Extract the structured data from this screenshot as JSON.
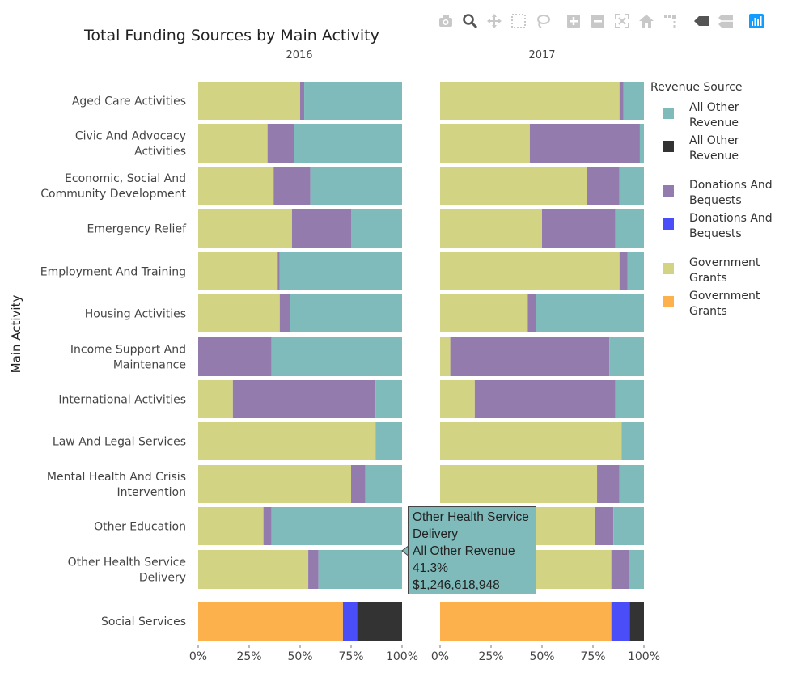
{
  "toolbar": {
    "buttons": [
      {
        "name": "camera-icon",
        "label": "Download plot as a png"
      },
      {
        "name": "zoom-icon",
        "label": "Zoom"
      },
      {
        "name": "pan-icon",
        "label": "Pan"
      },
      {
        "name": "box-select-icon",
        "label": "Box Select"
      },
      {
        "name": "lasso-select-icon",
        "label": "Lasso Select"
      },
      {
        "name": "zoom-in-icon",
        "label": "Zoom in"
      },
      {
        "name": "zoom-out-icon",
        "label": "Zoom out"
      },
      {
        "name": "autoscale-icon",
        "label": "Autoscale"
      },
      {
        "name": "reset-axes-icon",
        "label": "Reset axes"
      },
      {
        "name": "spike-lines-icon",
        "label": "Toggle Spike Lines"
      },
      {
        "name": "hover-closest-icon",
        "label": "Show closest data on hover"
      },
      {
        "name": "hover-compare-icon",
        "label": "Compare data on hover"
      },
      {
        "name": "plotly-logo-icon",
        "label": "Produced with Plotly"
      }
    ]
  },
  "chart_data": {
    "type": "bar",
    "orientation": "horizontal",
    "barmode": "stack",
    "title": "Total Funding Sources by Main Activity",
    "ylabel": "Main Activity",
    "xlim": [
      0,
      1
    ],
    "x_ticks": [
      "0%",
      "25%",
      "50%",
      "75%",
      "100%"
    ],
    "panels": [
      "2016",
      "2017"
    ],
    "categories": [
      "Aged Care Activities",
      "Civic And Advocacy Activities",
      "Economic, Social And Community Development",
      "Emergency Relief",
      "Employment And Training",
      "Housing Activities",
      "Income Support And Maintenance",
      "International Activities",
      "Law And Legal Services",
      "Mental Health And Crisis Intervention",
      "Other Education",
      "Other Health Service Delivery",
      "Social Services"
    ],
    "category_lines": [
      [
        "Aged Care Activities"
      ],
      [
        "Civic And Advocacy",
        "Activities"
      ],
      [
        "Economic, Social And",
        "Community Development"
      ],
      [
        "Emergency Relief"
      ],
      [
        "Employment And Training"
      ],
      [
        "Housing Activities"
      ],
      [
        "Income Support And",
        "Maintenance"
      ],
      [
        "International Activities"
      ],
      [
        "Law And Legal Services"
      ],
      [
        "Mental Health And Crisis",
        "Intervention"
      ],
      [
        "Other Education"
      ],
      [
        "Other Health Service",
        "Delivery"
      ],
      [
        "Social Services"
      ]
    ],
    "series": [
      {
        "name": "Government Grants",
        "group": "main",
        "color": "#d3d384",
        "values_2016": [
          0.5,
          0.34,
          0.37,
          0.46,
          0.39,
          0.4,
          0.0,
          0.17,
          0.87,
          0.75,
          0.32,
          0.54,
          0.0
        ],
        "values_2017": [
          0.88,
          0.44,
          0.72,
          0.5,
          0.88,
          0.43,
          0.05,
          0.17,
          0.89,
          0.77,
          0.76,
          0.84,
          0.0
        ]
      },
      {
        "name": "Donations And Bequests",
        "group": "main",
        "color": "#937bae",
        "values_2016": [
          0.02,
          0.13,
          0.18,
          0.29,
          0.01,
          0.05,
          0.36,
          0.7,
          0.0,
          0.07,
          0.04,
          0.05,
          0.0
        ],
        "values_2017": [
          0.02,
          0.54,
          0.16,
          0.36,
          0.04,
          0.04,
          0.78,
          0.69,
          0.0,
          0.11,
          0.09,
          0.09,
          0.0
        ]
      },
      {
        "name": "All Other Revenue",
        "group": "main",
        "color": "#7fbbba",
        "values_2016": [
          0.48,
          0.53,
          0.45,
          0.25,
          0.6,
          0.55,
          0.64,
          0.13,
          0.13,
          0.18,
          0.64,
          0.41,
          0.0
        ],
        "values_2017": [
          0.1,
          0.02,
          0.12,
          0.14,
          0.08,
          0.53,
          0.17,
          0.14,
          0.11,
          0.12,
          0.15,
          0.07,
          0.0
        ]
      },
      {
        "name": "Government Grants",
        "group": "social",
        "color": "#fdb14c",
        "values_2016": [
          0,
          0,
          0,
          0,
          0,
          0,
          0,
          0,
          0,
          0,
          0,
          0,
          0.71
        ],
        "values_2017": [
          0,
          0,
          0,
          0,
          0,
          0,
          0,
          0,
          0,
          0,
          0,
          0,
          0.84
        ]
      },
      {
        "name": "Donations And Bequests",
        "group": "social",
        "color": "#4a4ef8",
        "values_2016": [
          0,
          0,
          0,
          0,
          0,
          0,
          0,
          0,
          0,
          0,
          0,
          0,
          0.07
        ],
        "values_2017": [
          0,
          0,
          0,
          0,
          0,
          0,
          0,
          0,
          0,
          0,
          0,
          0,
          0.09
        ]
      },
      {
        "name": "All Other Revenue",
        "group": "social",
        "color": "#333333",
        "values_2016": [
          0,
          0,
          0,
          0,
          0,
          0,
          0,
          0,
          0,
          0,
          0,
          0,
          0.22
        ],
        "values_2017": [
          0,
          0,
          0,
          0,
          0,
          0,
          0,
          0,
          0,
          0,
          0,
          0,
          0.07
        ]
      }
    ],
    "legend": {
      "title": "Revenue Source",
      "placement": "right",
      "items": [
        {
          "lines": [
            "All Other",
            "Revenue"
          ],
          "color": "#7fbbba"
        },
        {
          "lines": [
            "All Other",
            "Revenue"
          ],
          "color": "#333333"
        },
        {
          "lines": [
            "Donations And",
            "Bequests"
          ],
          "color": "#937bae"
        },
        {
          "lines": [
            "Donations And",
            "Bequests"
          ],
          "color": "#4a4ef8"
        },
        {
          "lines": [
            "Government",
            "Grants"
          ],
          "color": "#d3d384"
        },
        {
          "lines": [
            "Government",
            "Grants"
          ],
          "color": "#fdb14c"
        }
      ]
    },
    "tooltip": {
      "category_index": 11,
      "panel": "2016",
      "lines": [
        "Other Health Service",
        "Delivery",
        "All Other Revenue",
        "41.3%",
        "$1,246,618,948"
      ]
    }
  }
}
